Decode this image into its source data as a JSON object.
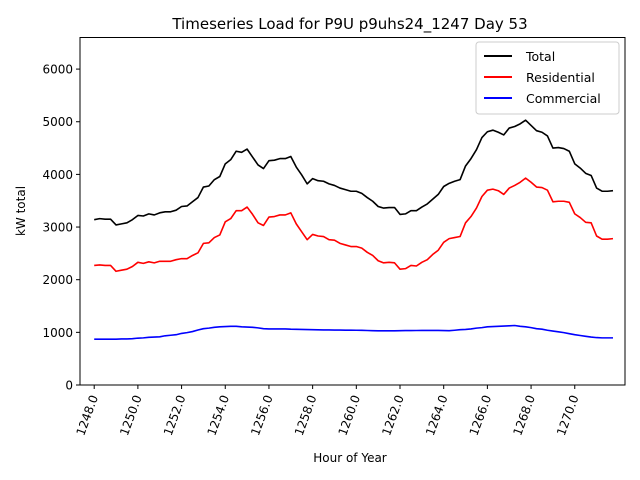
{
  "chart_data": {
    "type": "line",
    "title": "Timeseries Load for P9U p9uhs24_1247  Day 53",
    "xlabel": "Hour of Year",
    "ylabel": "kW total",
    "xlim": [
      1247.35,
      1272.3
    ],
    "ylim": [
      0,
      6600
    ],
    "x_ticks": [
      1248,
      1250,
      1252,
      1254,
      1256,
      1258,
      1260,
      1262,
      1264,
      1266,
      1268,
      1270
    ],
    "x_tick_labels": [
      "1248.0",
      "1250.0",
      "1252.0",
      "1254.0",
      "1256.0",
      "1258.0",
      "1260.0",
      "1262.0",
      "1264.0",
      "1266.0",
      "1268.0",
      "1270.0"
    ],
    "y_ticks": [
      0,
      1000,
      2000,
      3000,
      4000,
      5000,
      6000
    ],
    "y_tick_labels": [
      "0",
      "1000",
      "2000",
      "3000",
      "4000",
      "5000",
      "6000"
    ],
    "grid": false,
    "legend_position": "top-right",
    "x": [
      1248.0,
      1248.25,
      1248.5,
      1248.75,
      1249.0,
      1249.25,
      1249.5,
      1249.75,
      1250.0,
      1250.25,
      1250.5,
      1250.75,
      1251.0,
      1251.25,
      1251.5,
      1251.75,
      1252.0,
      1252.25,
      1252.5,
      1252.75,
      1253.0,
      1253.25,
      1253.5,
      1253.75,
      1254.0,
      1254.25,
      1254.5,
      1254.75,
      1255.0,
      1255.25,
      1255.5,
      1255.75,
      1256.0,
      1256.25,
      1256.5,
      1256.75,
      1257.0,
      1257.25,
      1257.5,
      1257.75,
      1258.0,
      1258.25,
      1258.5,
      1258.75,
      1259.0,
      1259.25,
      1259.5,
      1259.75,
      1260.0,
      1260.25,
      1260.5,
      1260.75,
      1261.0,
      1261.25,
      1261.5,
      1261.75,
      1262.0,
      1262.25,
      1262.5,
      1262.75,
      1263.0,
      1263.25,
      1263.5,
      1263.75,
      1264.0,
      1264.25,
      1264.5,
      1264.75,
      1265.0,
      1265.25,
      1265.5,
      1265.75,
      1266.0,
      1266.25,
      1266.5,
      1266.75,
      1267.0,
      1267.25,
      1267.5,
      1267.75,
      1268.0,
      1268.25,
      1268.5,
      1268.75,
      1269.0,
      1269.25,
      1269.5,
      1269.75,
      1270.0,
      1270.25,
      1270.5,
      1270.75,
      1271.0,
      1271.25,
      1271.5,
      1271.75
    ],
    "series": [
      {
        "name": "Total",
        "color": "#000000",
        "values": [
          3140,
          3160,
          3150,
          3150,
          3040,
          3060,
          3080,
          3140,
          3220,
          3210,
          3250,
          3230,
          3270,
          3290,
          3290,
          3320,
          3390,
          3400,
          3480,
          3560,
          3760,
          3780,
          3900,
          3960,
          4200,
          4280,
          4440,
          4420,
          4480,
          4330,
          4180,
          4110,
          4260,
          4270,
          4300,
          4300,
          4340,
          4140,
          3990,
          3820,
          3920,
          3880,
          3870,
          3820,
          3790,
          3740,
          3710,
          3680,
          3680,
          3640,
          3560,
          3490,
          3390,
          3360,
          3370,
          3370,
          3240,
          3250,
          3310,
          3310,
          3380,
          3440,
          3530,
          3620,
          3770,
          3830,
          3870,
          3900,
          4160,
          4300,
          4470,
          4700,
          4810,
          4840,
          4800,
          4750,
          4880,
          4910,
          4960,
          5030,
          4930,
          4830,
          4800,
          4730,
          4500,
          4510,
          4490,
          4440,
          4200,
          4120,
          4020,
          3980,
          3740,
          3680,
          3680,
          3690
        ]
      },
      {
        "name": "Residential",
        "color": "#ff0000",
        "values": [
          2270,
          2280,
          2270,
          2270,
          2160,
          2180,
          2200,
          2250,
          2330,
          2310,
          2340,
          2320,
          2350,
          2350,
          2350,
          2380,
          2400,
          2400,
          2460,
          2510,
          2690,
          2700,
          2800,
          2850,
          3100,
          3160,
          3310,
          3310,
          3380,
          3240,
          3080,
          3030,
          3190,
          3200,
          3230,
          3230,
          3270,
          3060,
          2910,
          2760,
          2860,
          2830,
          2820,
          2760,
          2750,
          2690,
          2660,
          2630,
          2630,
          2600,
          2520,
          2460,
          2360,
          2320,
          2330,
          2320,
          2200,
          2210,
          2270,
          2260,
          2330,
          2380,
          2480,
          2560,
          2710,
          2780,
          2800,
          2820,
          3080,
          3200,
          3360,
          3580,
          3700,
          3720,
          3690,
          3620,
          3740,
          3790,
          3850,
          3930,
          3850,
          3760,
          3750,
          3700,
          3480,
          3490,
          3490,
          3470,
          3250,
          3180,
          3090,
          3080,
          2830,
          2770,
          2770,
          2780
        ]
      },
      {
        "name": "Commercial",
        "color": "#0000ff",
        "values": [
          870,
          870,
          870,
          870,
          870,
          875,
          875,
          880,
          890,
          895,
          905,
          910,
          915,
          935,
          945,
          955,
          980,
          995,
          1015,
          1045,
          1070,
          1080,
          1095,
          1105,
          1110,
          1115,
          1115,
          1105,
          1100,
          1095,
          1085,
          1070,
          1065,
          1065,
          1065,
          1065,
          1060,
          1058,
          1055,
          1052,
          1050,
          1048,
          1046,
          1045,
          1044,
          1043,
          1042,
          1041,
          1040,
          1038,
          1035,
          1032,
          1030,
          1030,
          1030,
          1030,
          1032,
          1033,
          1034,
          1035,
          1036,
          1036,
          1036,
          1036,
          1034,
          1032,
          1040,
          1050,
          1055,
          1065,
          1080,
          1090,
          1105,
          1110,
          1115,
          1120,
          1125,
          1130,
          1115,
          1105,
          1090,
          1070,
          1060,
          1040,
          1025,
          1010,
          995,
          975,
          955,
          940,
          925,
          910,
          900,
          895,
          895,
          895
        ]
      }
    ]
  }
}
